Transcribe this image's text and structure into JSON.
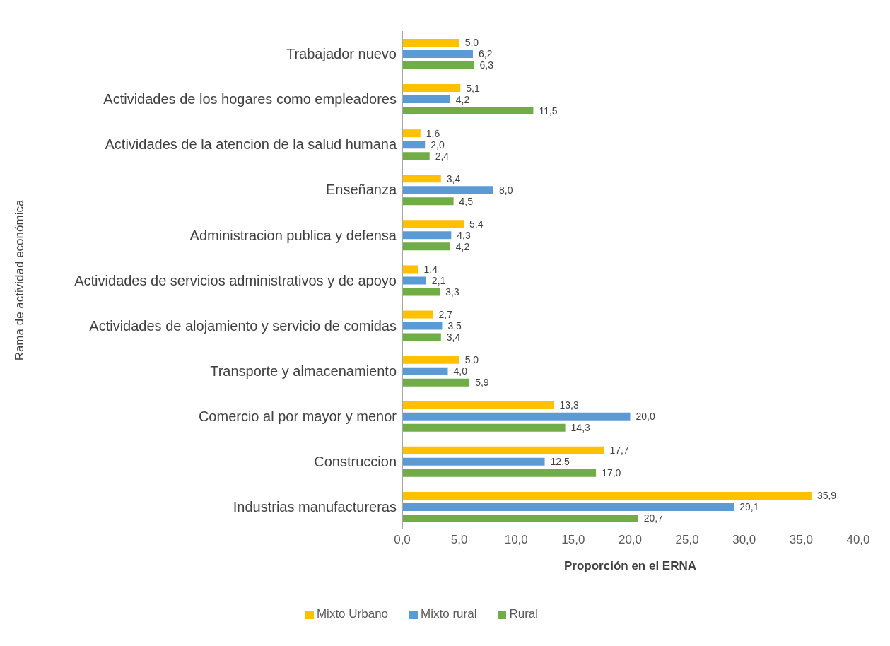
{
  "chart_data": {
    "type": "bar",
    "orientation": "horizontal",
    "xlabel": "Proporción en el ERNA",
    "ylabel": "Rama de actividad económica",
    "categories": [
      "Trabajador nuevo",
      "Actividades de los hogares como empleadores",
      "Actividades de la atencion de la salud humana",
      "Enseñanza",
      "Administracion publica y defensa",
      "Actividades de servicios administrativos y de apoyo",
      "Actividades de alojamiento y servicio de comidas",
      "Transporte y almacenamiento",
      "Comercio al por mayor y menor",
      "Construccion",
      "Industrias manufactureras"
    ],
    "series": [
      {
        "name": "Mixto Urbano",
        "color": "#ffc000",
        "values": [
          5.0,
          5.1,
          1.6,
          3.4,
          5.4,
          1.4,
          2.7,
          5.0,
          13.3,
          17.7,
          35.9
        ],
        "value_labels": [
          "5,0",
          "5,1",
          "1,6",
          "3,4",
          "5,4",
          "1,4",
          "2,7",
          "5,0",
          "13,3",
          "17,7",
          "35,9"
        ]
      },
      {
        "name": "Mixto rural",
        "color": "#5b9bd5",
        "values": [
          6.2,
          4.2,
          2.0,
          8.0,
          4.3,
          2.1,
          3.5,
          4.0,
          20.0,
          12.5,
          29.1
        ],
        "value_labels": [
          "6,2",
          "4,2",
          "2,0",
          "8,0",
          "4,3",
          "2,1",
          "3,5",
          "4,0",
          "20,0",
          "12,5",
          "29,1"
        ]
      },
      {
        "name": "Rural",
        "color": "#70ad47",
        "values": [
          6.3,
          11.5,
          2.4,
          4.5,
          4.2,
          3.3,
          3.4,
          5.9,
          14.3,
          17.0,
          20.7
        ],
        "value_labels": [
          "6,3",
          "11,5",
          "2,4",
          "4,5",
          "4,2",
          "3,3",
          "3,4",
          "5,9",
          "14,3",
          "17,0",
          "20,7"
        ]
      }
    ],
    "xlim": [
      0,
      40
    ],
    "xticks": [
      {
        "value": 0,
        "label": "0,0"
      },
      {
        "value": 5,
        "label": "5,0"
      },
      {
        "value": 10,
        "label": "10,0"
      },
      {
        "value": 15,
        "label": "15,0"
      },
      {
        "value": 20,
        "label": "20,0"
      },
      {
        "value": 25,
        "label": "25,0"
      },
      {
        "value": 30,
        "label": "30,0"
      },
      {
        "value": 35,
        "label": "35,0"
      },
      {
        "value": 40,
        "label": "40,0"
      }
    ],
    "grid": false,
    "legend": "bottom"
  }
}
